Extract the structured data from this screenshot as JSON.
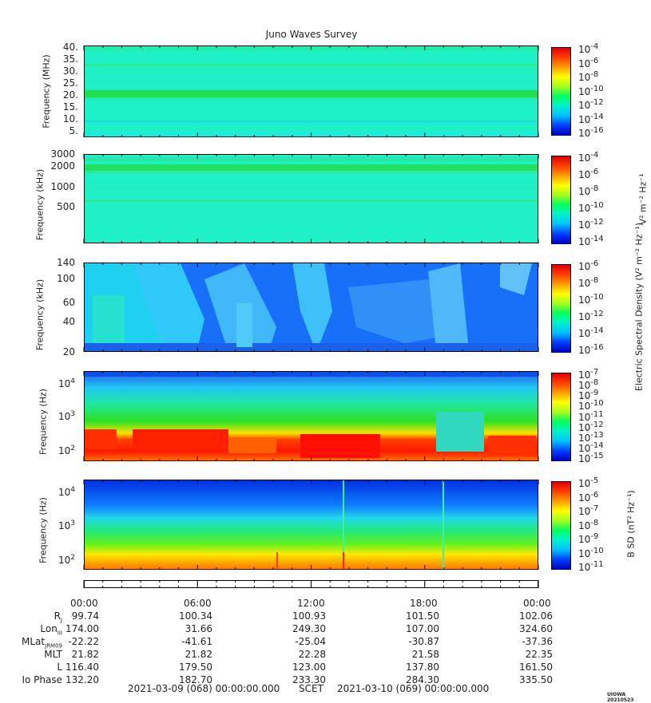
{
  "chart_data": {
    "type": "heatmap",
    "title": "Juno Waves Survey",
    "panels": [
      {
        "id": "p1",
        "ylabel": "Frequency (MHz)",
        "yticks": [
          "40.",
          "35.",
          "30.",
          "25.",
          "20.",
          "15.",
          "10.",
          "5."
        ],
        "ylim": [
          3,
          41
        ],
        "colorbar_ticks": [
          "-4",
          "-6",
          "-8",
          "-10",
          "-12",
          "-14",
          "-16"
        ],
        "colorbar_base": "10",
        "description": "nearly uniform background with enhanced band near 21 MHz"
      },
      {
        "id": "p2",
        "ylabel": "Frequency (kHz)",
        "yticks": [
          "3000",
          "2000",
          "1000",
          "500"
        ],
        "colorbar_ticks": [
          "-4",
          "-6",
          "-8",
          "-10",
          "-12",
          "-14"
        ],
        "colorbar_base": "10",
        "colorbar_label": "V² m⁻² Hz⁻¹",
        "description": "uniform background with enhanced bands near 2000 kHz"
      },
      {
        "id": "p3",
        "ylabel": "Frequency (kHz)",
        "yticks": [
          "140",
          "100",
          "60",
          "40",
          "20"
        ],
        "colorbar_ticks": [
          "-6",
          "-8",
          "-10",
          "-12",
          "-14",
          "-16"
        ],
        "colorbar_base": "10",
        "colorbar_label": "Electric Spectral Density (V² m⁻² Hz⁻¹)",
        "description": "patchy cyan emissions on blue background, strongest before 14:00"
      },
      {
        "id": "p4",
        "ylabel": "Frequency (Hz)",
        "yticks": [
          "10^4",
          "10^3",
          "10^2"
        ],
        "colorbar_ticks": [
          "-7",
          "-8",
          "-9",
          "-10",
          "-11",
          "-12",
          "-13",
          "-14",
          "-15"
        ],
        "colorbar_base": "10",
        "description": "intense red/orange emission below 300 Hz, green-yellow broadband up to ~10 kHz"
      },
      {
        "id": "p5",
        "ylabel": "Frequency (Hz)",
        "yticks": [
          "10^4",
          "10^3",
          "10^2"
        ],
        "colorbar_ticks": [
          "-5",
          "-6",
          "-7",
          "-8",
          "-9",
          "-10",
          "-11"
        ],
        "colorbar_base": "10",
        "colorbar_label": "B SD (nT² Hz⁻¹)",
        "description": "blue at high frequency grading to green then yellow/orange below 200 Hz"
      }
    ],
    "x_times": [
      "00:00",
      "06:00",
      "12:00",
      "18:00",
      "00:00"
    ],
    "ephemeris": [
      {
        "label": "R",
        "sub": "J",
        "values": [
          "99.74",
          "100.34",
          "100.93",
          "101.50",
          "102.06"
        ]
      },
      {
        "label": "Lon",
        "sub": "III",
        "values": [
          "174.00",
          "31.66",
          "249.30",
          "107.00",
          "324.60"
        ]
      },
      {
        "label": "MLat",
        "sub": "JRM09",
        "values": [
          "-22.22",
          "-41.61",
          "-25.04",
          "-30.87",
          "-37.36"
        ]
      },
      {
        "label": "MLT",
        "sub": "",
        "values": [
          "21.82",
          "21.82",
          "22.28",
          "21.58",
          "22.35"
        ]
      },
      {
        "label": "L",
        "sub": "",
        "values": [
          "116.40",
          "179.50",
          "123.00",
          "137.80",
          "161.50"
        ]
      },
      {
        "label": "Io Phase",
        "sub": "",
        "values": [
          "132.20",
          "182.70",
          "233.30",
          "284.30",
          "335.50"
        ]
      }
    ]
  },
  "footer": {
    "start": "2021-03-09 (068) 00:00:00.000",
    "scet": "SCET",
    "end": "2021-03-10 (069) 00:00:00.000"
  },
  "corner_tag": "UIOWA 20210523",
  "colors": {
    "bg_cyan": "#1ef0d0",
    "bg_blue": "#1060ff",
    "band_green": "#20e860",
    "red": "#ff1a00",
    "yellow": "#ffe000"
  }
}
